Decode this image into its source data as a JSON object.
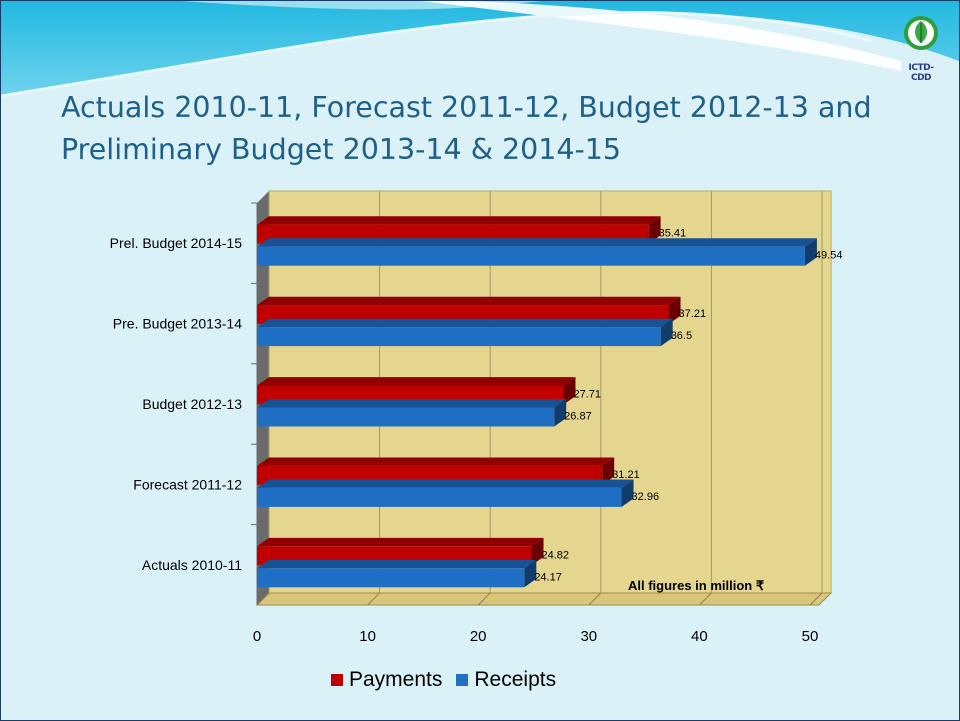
{
  "slide": {
    "title_lines": [
      "Actuals 2010-11, Forecast 2011-12, Budget 2012-13 and",
      "Preliminary Budget 2013-14 & 2014-15"
    ],
    "logo_text": "ICTD-CDD"
  },
  "colors": {
    "background": "#d9f1f7",
    "plot_area": "#e4d58f",
    "payments": "#c00000",
    "receipts": "#1f6fc5",
    "title": "#1f5f8a"
  },
  "chart_data": {
    "type": "bar",
    "orientation": "horizontal",
    "categories": [
      "Actuals 2010-11",
      "Forecast 2011-12",
      "Budget 2012-13",
      "Pre. Budget 2013-14",
      "Prel. Budget 2014-15"
    ],
    "series": [
      {
        "name": "Payments",
        "color": "#c00000",
        "values": [
          24.82,
          31.21,
          27.71,
          37.21,
          35.41
        ],
        "labels": [
          "24.82",
          "31.21",
          "27.71",
          "37.21",
          "35.41"
        ]
      },
      {
        "name": "Receipts",
        "color": "#1f6fc5",
        "values": [
          24.17,
          32.96,
          26.87,
          36.5,
          49.54
        ],
        "labels": [
          "24.17",
          "32.96",
          "26.87",
          "36.5",
          "49.54"
        ]
      }
    ],
    "xlim": [
      0,
      50
    ],
    "xticks": [
      "0",
      "10",
      "20",
      "30",
      "40",
      "50"
    ],
    "annotation": "All figures in million ₹",
    "legend_position": "bottom",
    "grid": true
  }
}
